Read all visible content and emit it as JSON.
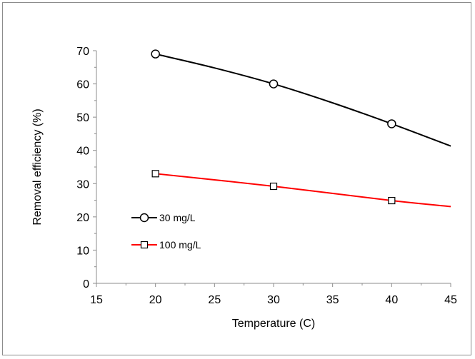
{
  "chart_data": {
    "type": "line",
    "title": "",
    "xlabel": "Temperature  (C)",
    "ylabel": "Removal efficiency  (%)",
    "xlim": [
      15,
      45
    ],
    "ylim": [
      0,
      70
    ],
    "xticks": [
      15,
      20,
      25,
      30,
      35,
      40,
      45
    ],
    "yticks": [
      0,
      10,
      20,
      30,
      40,
      50,
      60,
      70
    ],
    "grid": false,
    "legend_position": "left-lower",
    "series": [
      {
        "name": "30 mg/L",
        "color": "#000000",
        "marker": "circle",
        "markers": [
          {
            "x": 20,
            "y": 69
          },
          {
            "x": 30,
            "y": 60
          },
          {
            "x": 40,
            "y": 48
          }
        ],
        "curve": [
          {
            "x": 20,
            "y": 69
          },
          {
            "x": 25,
            "y": 64.8
          },
          {
            "x": 30,
            "y": 60
          },
          {
            "x": 35,
            "y": 54.3
          },
          {
            "x": 40,
            "y": 48
          },
          {
            "x": 45,
            "y": 41.3
          }
        ]
      },
      {
        "name": "100 mg/L",
        "color": "#ff0000",
        "marker": "square",
        "markers": [
          {
            "x": 20,
            "y": 33
          },
          {
            "x": 30,
            "y": 29.2
          },
          {
            "x": 40,
            "y": 24.9
          }
        ],
        "curve": [
          {
            "x": 20,
            "y": 33
          },
          {
            "x": 30,
            "y": 29.2
          },
          {
            "x": 40,
            "y": 24.9
          },
          {
            "x": 45,
            "y": 23.1
          }
        ]
      }
    ]
  }
}
